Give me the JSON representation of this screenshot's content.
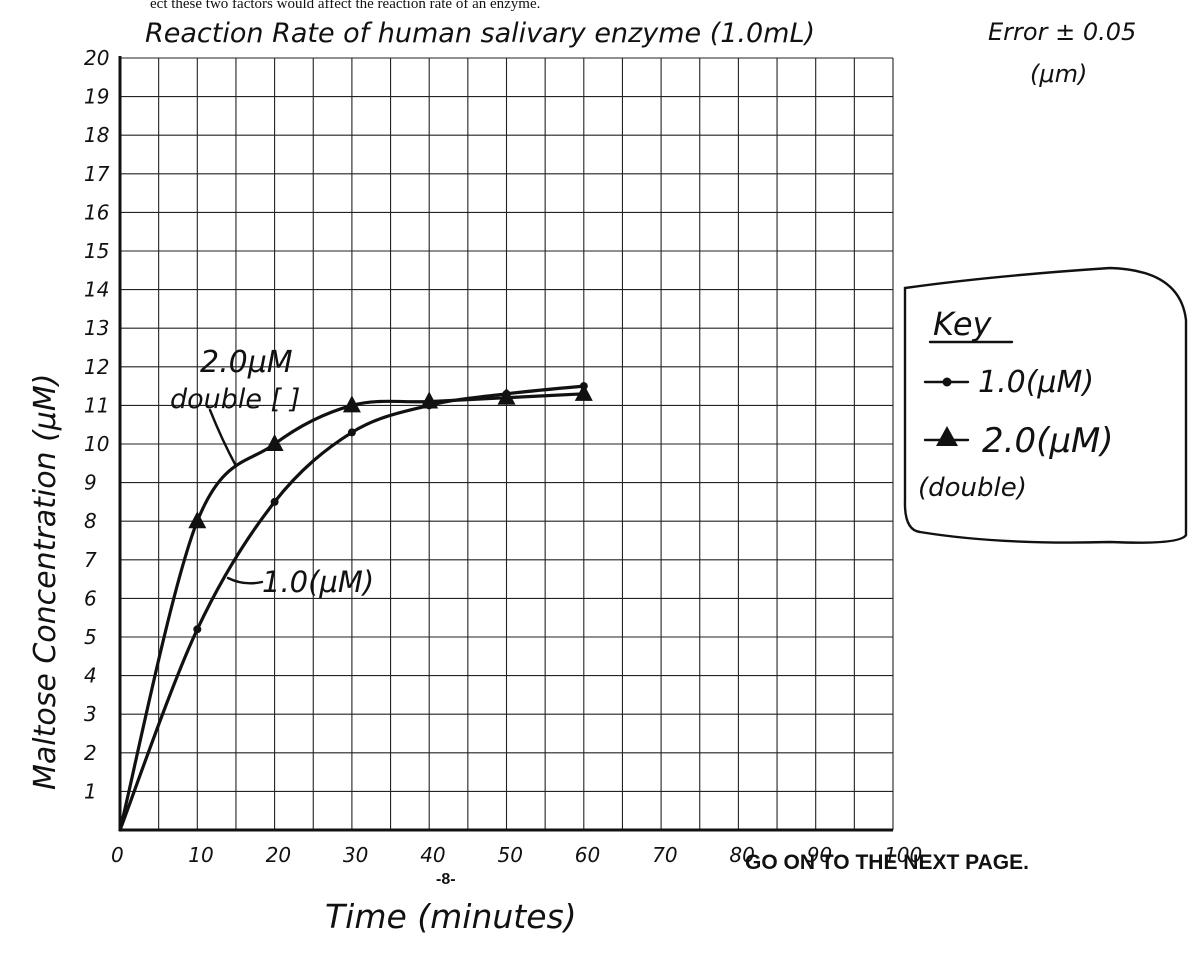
{
  "header_fragment": "ect these two factors would affect the reaction rate of an enzyme.",
  "footer": {
    "next_page": "GO ON TO THE NEXT PAGE.",
    "page_number": "-8-"
  },
  "key": {
    "title": "Key",
    "items": [
      {
        "label": "1.0(μM)",
        "marker": "dot"
      },
      {
        "label": "2.0(μM)",
        "sublabel": "(double)",
        "marker": "triangle"
      }
    ]
  },
  "chart_data": {
    "type": "line",
    "title": "Reaction Rate of human salivary enzyme (1.0mL)",
    "error_note": "Error ± 0.05",
    "error_unit": "(μm)",
    "xlabel": "Time (minutes)",
    "ylabel": "Maltose Concentration (μM)",
    "xlim": [
      0,
      100
    ],
    "ylim": [
      0,
      20
    ],
    "x_ticks": [
      "0",
      "10",
      "20",
      "30",
      "40",
      "50",
      "60",
      "70",
      "80",
      "90",
      "100"
    ],
    "y_ticks": [
      "1",
      "2",
      "3",
      "4",
      "5",
      "6",
      "7",
      "8",
      "9",
      "10",
      "11",
      "12",
      "13",
      "14",
      "15",
      "16",
      "17",
      "18",
      "19",
      "20"
    ],
    "grid": true,
    "series": [
      {
        "name": "1.0(μM)",
        "marker": "dot",
        "curve_label": "1.0(μM)",
        "x": [
          0,
          10,
          20,
          30,
          40,
          50,
          60
        ],
        "y": [
          0,
          5.2,
          8.5,
          10.3,
          11.0,
          11.3,
          11.5
        ]
      },
      {
        "name": "2.0(μM)",
        "marker": "triangle",
        "curve_label": "2.0μM",
        "curve_sublabel": "double [ ]",
        "x": [
          0,
          10,
          20,
          30,
          40,
          50,
          60
        ],
        "y": [
          0,
          8,
          10,
          11,
          11.1,
          11.2,
          11.3
        ]
      }
    ]
  }
}
